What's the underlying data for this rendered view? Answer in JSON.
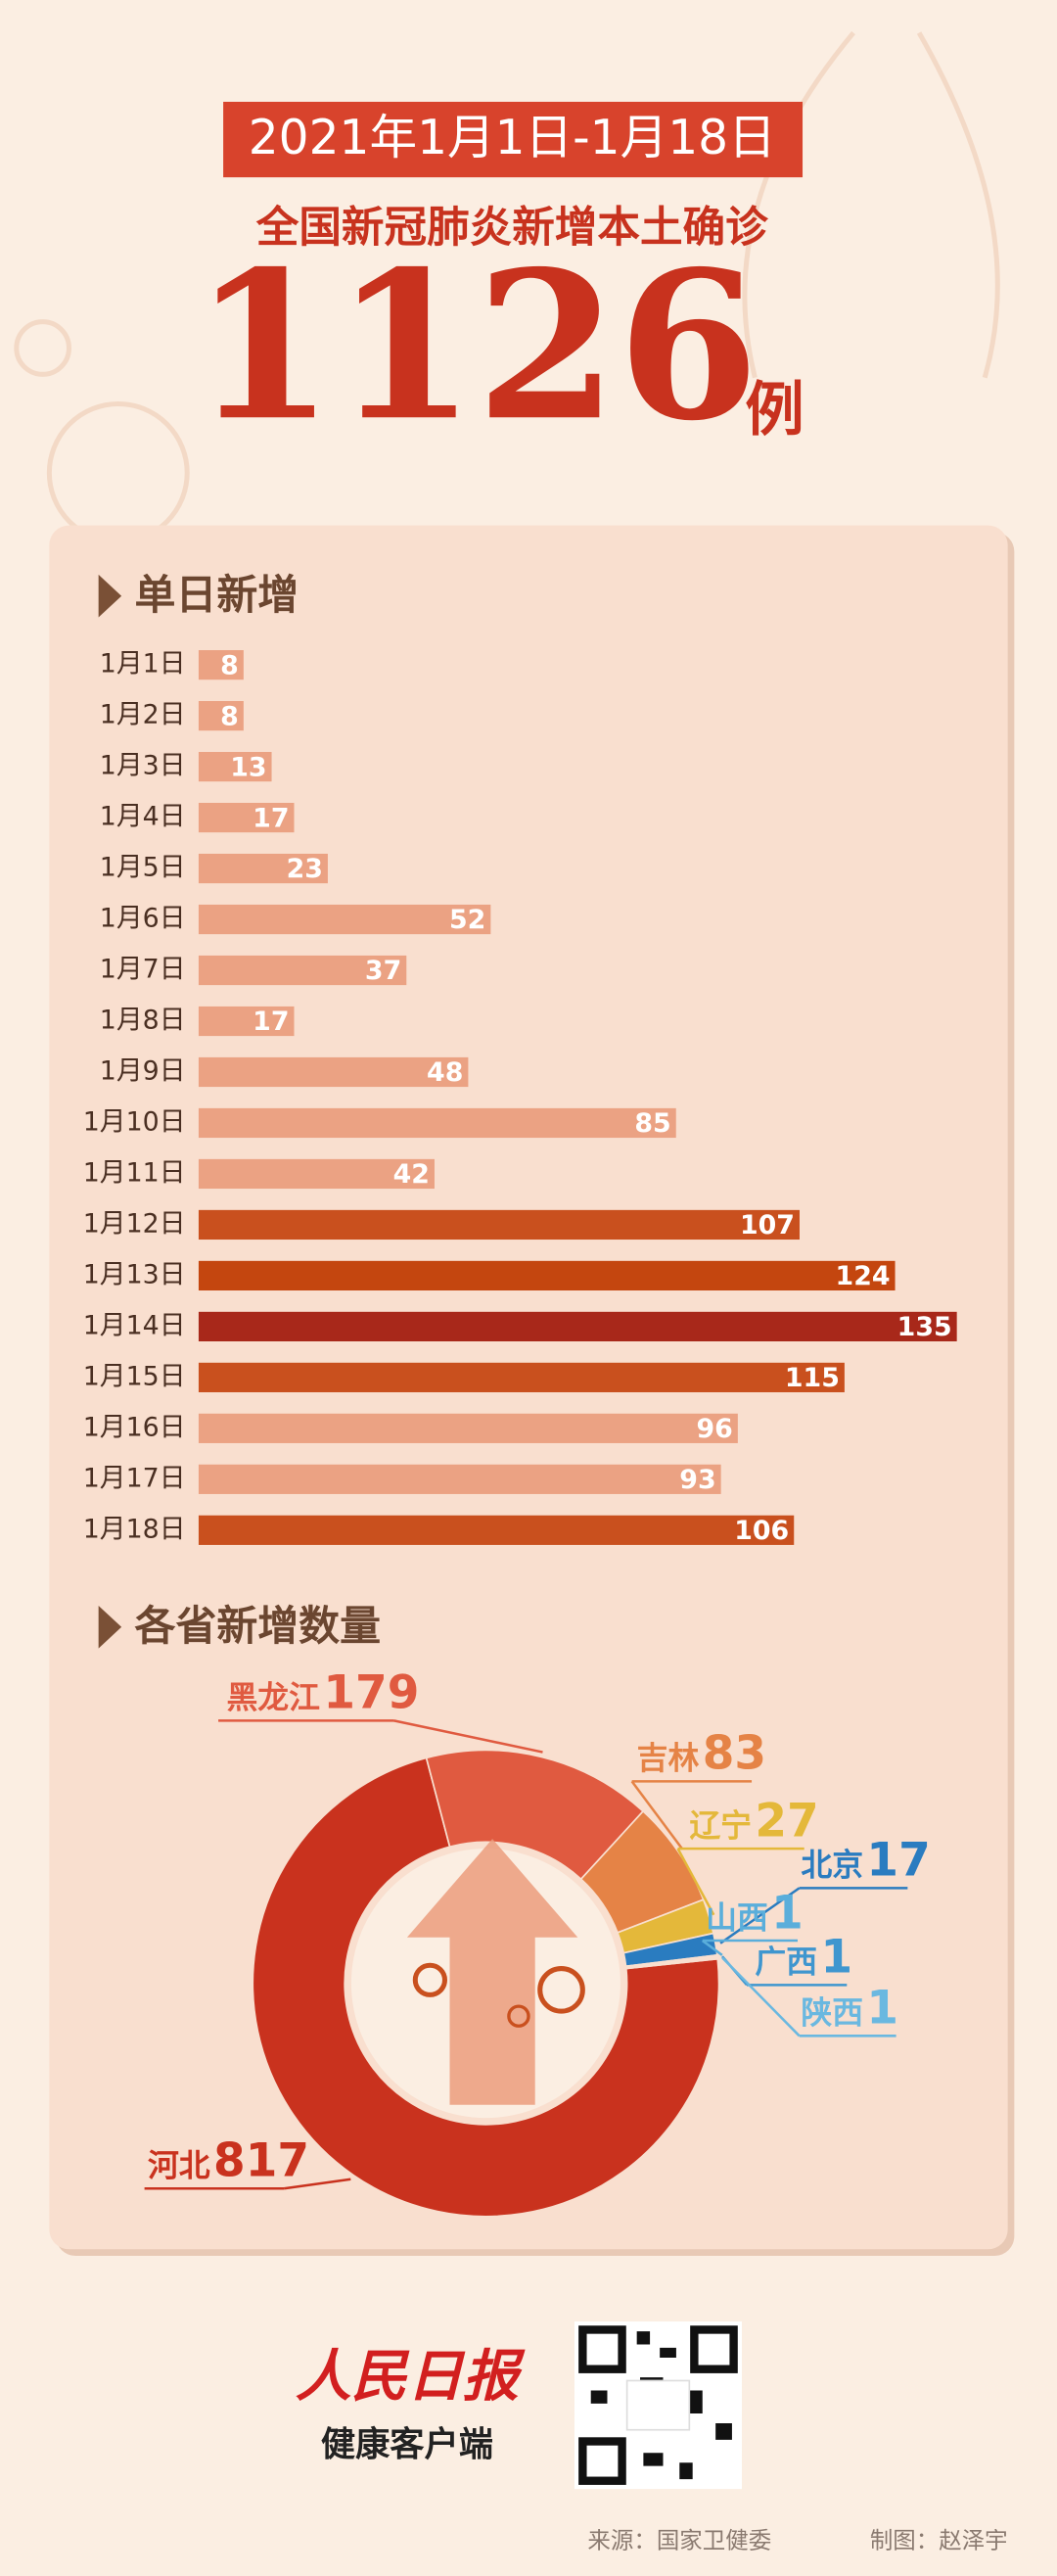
{
  "header": {
    "date_range": "2021年1月1日-1月18日",
    "subtitle": "全国新冠肺炎新增本土确诊",
    "total": 1126,
    "unit": "例"
  },
  "chart_data": [
    {
      "type": "bar",
      "title": "单日新增",
      "categories": [
        "1月1日",
        "1月2日",
        "1月3日",
        "1月4日",
        "1月5日",
        "1月6日",
        "1月7日",
        "1月8日",
        "1月9日",
        "1月10日",
        "1月11日",
        "1月12日",
        "1月13日",
        "1月14日",
        "1月15日",
        "1月16日",
        "1月17日",
        "1月18日"
      ],
      "values": [
        8,
        8,
        13,
        17,
        23,
        52,
        37,
        17,
        48,
        85,
        42,
        107,
        124,
        135,
        115,
        96,
        93,
        106
      ],
      "colors": [
        "#eba283",
        "#eba283",
        "#eba283",
        "#eba283",
        "#eba283",
        "#eba283",
        "#eba283",
        "#eba283",
        "#eba283",
        "#eba283",
        "#eba283",
        "#c9501e",
        "#c4460f",
        "#a8281a",
        "#c9501e",
        "#eba283",
        "#eba283",
        "#c9501e"
      ]
    },
    {
      "type": "pie",
      "title": "各省新增数量",
      "categories": [
        "河北",
        "黑龙江",
        "吉林",
        "辽宁",
        "北京",
        "山西",
        "广西",
        "陕西"
      ],
      "values": [
        817,
        179,
        83,
        27,
        17,
        1,
        1,
        1
      ],
      "colors": [
        "#c9321e",
        "#e05a40",
        "#e58346",
        "#e4b83a",
        "#2a7cc0",
        "#5aaedb",
        "#3f96cf",
        "#6ab8e0"
      ]
    }
  ],
  "footer": {
    "logo": "人民日报",
    "app": "健康客户端",
    "source": "来源：国家卫健委",
    "credit": "制图：赵泽宇"
  }
}
